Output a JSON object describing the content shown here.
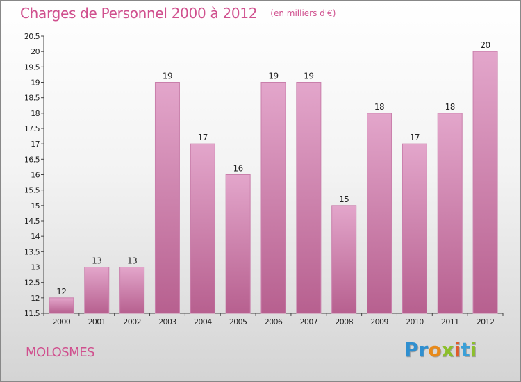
{
  "header": {
    "title": "Charges de Personnel 2000 à 2012",
    "unit": "(en milliers d'€)"
  },
  "footer": {
    "commune": "MOLOSMES",
    "logo_letters": [
      {
        "char": "P",
        "color": "#2f8fd0"
      },
      {
        "char": "r",
        "color": "#2f8fd0"
      },
      {
        "char": "o",
        "color": "#e88a1a"
      },
      {
        "char": "x",
        "color": "#8cbf2b"
      },
      {
        "char": "i",
        "color": "#e05b2a"
      },
      {
        "char": "t",
        "color": "#3aa0d8"
      },
      {
        "char": "i",
        "color": "#8cbf2b"
      }
    ]
  },
  "colors": {
    "bar_top": "#e3a6cb",
    "bar_bottom": "#b7608f",
    "bar_stroke": "#c97fab",
    "title": "#d0508e"
  },
  "chart_data": {
    "type": "bar",
    "title": "Charges de Personnel 2000 à 2012",
    "subtitle": "(en milliers d'€)",
    "xlabel": "",
    "ylabel": "",
    "categories": [
      "2000",
      "2001",
      "2002",
      "2003",
      "2004",
      "2005",
      "2006",
      "2007",
      "2008",
      "2009",
      "2010",
      "2011",
      "2012"
    ],
    "values": [
      12,
      13,
      13,
      19,
      17,
      16,
      19,
      19,
      15,
      18,
      17,
      18,
      20
    ],
    "data_labels": [
      "12",
      "13",
      "13",
      "19",
      "17",
      "16",
      "19",
      "19",
      "15",
      "18",
      "17",
      "18",
      "20"
    ],
    "ylim": [
      11.5,
      20.5
    ],
    "yticks": [
      11.5,
      12,
      12.5,
      13,
      13.5,
      14,
      14.5,
      15,
      15.5,
      16,
      16.5,
      17,
      17.5,
      18,
      18.5,
      19,
      19.5,
      20,
      20.5
    ],
    "ytick_labels": [
      "11.5",
      "12",
      "12.5",
      "13",
      "13.5",
      "14",
      "14.5",
      "15",
      "15.5",
      "16",
      "16.5",
      "17",
      "17.5",
      "18",
      "18.5",
      "19",
      "19.5",
      "20",
      "20.5"
    ],
    "grid": false,
    "legend": "none"
  }
}
